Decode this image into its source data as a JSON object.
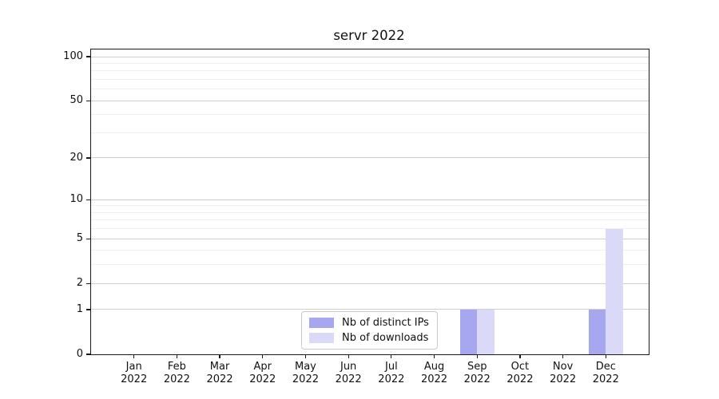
{
  "chart_data": {
    "type": "bar",
    "title": "servr 2022",
    "categories": [
      "Jan",
      "Feb",
      "Mar",
      "Apr",
      "May",
      "Jun",
      "Jul",
      "Aug",
      "Sep",
      "Oct",
      "Nov",
      "Dec"
    ],
    "year": "2022",
    "series": [
      {
        "name": "Nb of distinct IPs",
        "color": "#a7a7ef",
        "values": [
          0,
          0,
          0,
          0,
          0,
          0,
          0,
          0,
          1,
          0,
          0,
          1
        ]
      },
      {
        "name": "Nb of downloads",
        "color": "#dadaf8",
        "values": [
          0,
          0,
          0,
          0,
          0,
          0,
          0,
          0,
          1,
          0,
          0,
          6
        ]
      }
    ],
    "xlabel": "",
    "ylabel": "",
    "yscale": "log1p",
    "ylim": [
      0,
      112
    ],
    "yticks": [
      0,
      1,
      2,
      5,
      10,
      20,
      50,
      100
    ],
    "minor_gridlines": [
      3,
      4,
      6,
      7,
      8,
      9,
      30,
      40,
      60,
      70,
      80,
      90
    ],
    "grid": true,
    "legend": {
      "position": "lower-center",
      "labels": [
        "Nb of distinct IPs",
        "Nb of downloads"
      ]
    }
  },
  "colors": {
    "background": "#ffffff",
    "axis": "#1a1a1a",
    "grid_major": "#cfcfcf",
    "grid_minor": "#efefef",
    "text": "#111111",
    "legend_border": "#c9c9c9"
  }
}
